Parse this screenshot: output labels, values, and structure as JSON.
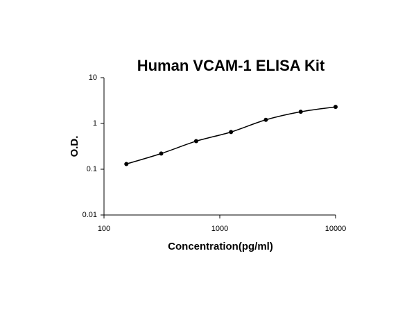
{
  "chart_data": {
    "type": "scatter",
    "title": "Human VCAM-1 ELISA Kit",
    "x_label": "Concentration(pg/ml)",
    "y_label": "O.D.",
    "x": [
      156,
      312,
      625,
      1250,
      2500,
      5000,
      10000
    ],
    "values": [
      0.13,
      0.22,
      0.41,
      0.65,
      1.2,
      1.8,
      2.3
    ],
    "color": "#000000",
    "smooth_line": true,
    "xlog": true,
    "ylog": true,
    "xlim": [
      100,
      10000
    ],
    "ylim": [
      0.01,
      10
    ],
    "xticks": [
      100,
      1000,
      10000
    ],
    "yticks": [
      0.01,
      0.1,
      1,
      10
    ]
  }
}
